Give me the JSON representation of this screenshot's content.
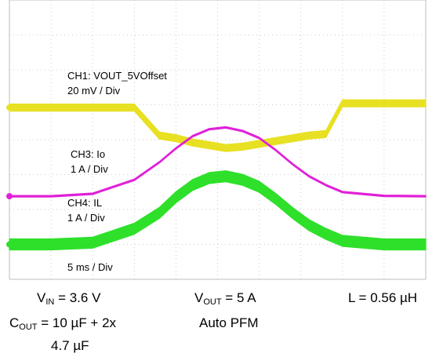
{
  "chart_data": {
    "type": "line",
    "x_unit": "ms",
    "x": [
      0,
      5,
      10,
      15,
      18,
      20,
      22,
      24,
      26,
      28,
      30,
      32,
      34,
      36,
      38,
      40,
      45,
      50
    ],
    "series": [
      {
        "name": "CH1: VOUT_5VOffset",
        "scale": "20 mV / Div",
        "color": "#e8e023",
        "values": [
          -2.7,
          -2.7,
          -2.7,
          -2.7,
          -4.7,
          -4.9,
          -5.2,
          -5.4,
          -5.6,
          -5.5,
          -5.3,
          -5.1,
          -4.9,
          -4.7,
          -4.6,
          -2.4,
          -2.4,
          -2.4
        ]
      },
      {
        "name": "CH3: Io",
        "scale": "1 A  / Div",
        "color": "#e020d8",
        "values": [
          0.03,
          0.03,
          0.1,
          0.5,
          1.0,
          1.4,
          1.75,
          1.95,
          2.0,
          1.9,
          1.7,
          1.35,
          0.95,
          0.6,
          0.35,
          0.15,
          0.04,
          0.03
        ]
      },
      {
        "name": "CH4: IL",
        "scale": "1 A / Div",
        "color": "#2ee02a",
        "values": [
          0.1,
          0.1,
          0.15,
          0.55,
          1.0,
          1.45,
          1.8,
          2.0,
          2.05,
          1.95,
          1.75,
          1.4,
          1.0,
          0.65,
          0.4,
          0.2,
          0.1,
          0.1
        ]
      }
    ],
    "timebase": "5 ms / Div",
    "grid": true
  },
  "conditions": {
    "vin": {
      "sym": "V",
      "sub": "IN",
      "val": " = 3.6 V"
    },
    "vout": {
      "sym": "V",
      "sub": "OUT",
      "val": " = 5 A"
    },
    "l": "L = 0.56 µH",
    "cout": {
      "sym": "C",
      "sub": "OUT",
      "val": " = 10 µF + 2x"
    },
    "cout2": "4.7 µF",
    "mode": "Auto PFM"
  }
}
